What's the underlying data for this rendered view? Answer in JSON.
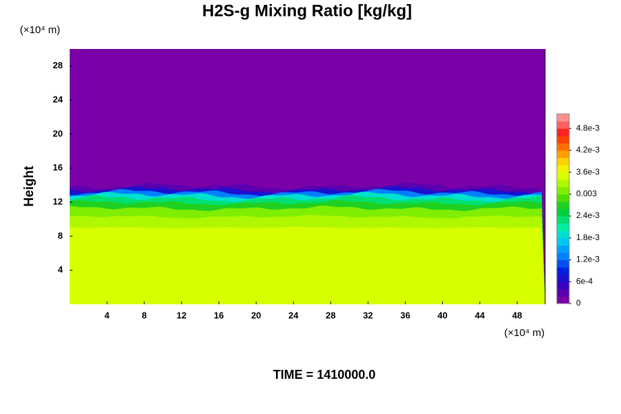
{
  "chart_data": {
    "type": "contourf",
    "title": "H2S-g Mixing Ratio [kg/kg]",
    "y_label": "Height",
    "y_unit": "(×10⁴ m)",
    "x_unit": "(×10⁴ m)",
    "footer": "TIME = 1410000.0",
    "xlim": [
      0,
      51
    ],
    "xticks": [
      4,
      8,
      12,
      16,
      20,
      24,
      28,
      32,
      36,
      40,
      44,
      48
    ],
    "ylim": [
      0,
      30
    ],
    "yticks": [
      4,
      8,
      12,
      16,
      20,
      24,
      28
    ],
    "clim": [
      0,
      0.0052
    ],
    "cticks": [
      0,
      {
        "value": 0.0006,
        "label": "6e-4"
      },
      {
        "value": 0.0012,
        "label": "1.2e-3"
      },
      {
        "value": 0.0018,
        "label": "1.8e-3"
      },
      {
        "value": 0.0024,
        "label": "2.4e-3"
      },
      0.003,
      {
        "value": 0.0036,
        "label": "3.6e-3"
      },
      {
        "value": 0.0042,
        "label": "4.2e-3"
      },
      {
        "value": 0.0048,
        "label": "4.8e-3"
      }
    ],
    "colors": [
      "#7a00a8",
      "#5a00b0",
      "#3a00c0",
      "#1a10d0",
      "#0020e0",
      "#0050f0",
      "#0080ff",
      "#00a0ff",
      "#00c8f0",
      "#00e0d0",
      "#00f0a0",
      "#00e070",
      "#00d040",
      "#20d020",
      "#50e000",
      "#80ee00",
      "#b0f800",
      "#d8ff00",
      "#f0f000",
      "#ffd000",
      "#ffa000",
      "#ff7000",
      "#ff4000",
      "#ff2020",
      "#ff6060",
      "#ff9090"
    ]
  }
}
